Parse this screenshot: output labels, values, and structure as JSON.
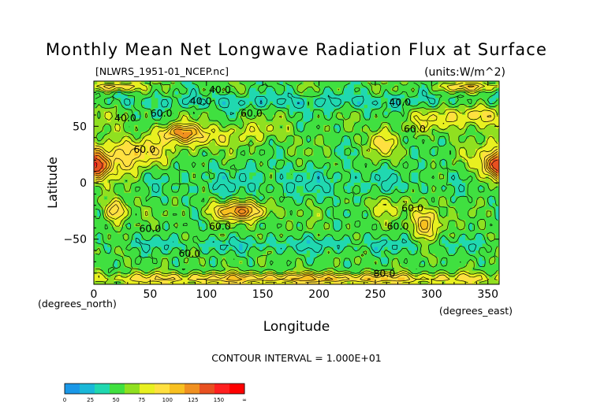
{
  "chart_data": {
    "type": "heatmap",
    "title": "Monthly Mean Net Longwave Radiation Flux at Surface",
    "subtitle_left": "[NLWRS_1951-01_NCEP.nc]",
    "units": "(units:W/m^2)",
    "xlabel": "Longitude",
    "ylabel": "Latitude",
    "x_axis_note": "(degrees_north)",
    "x_unit_note": "(degrees_east)",
    "xlim": [
      0,
      360
    ],
    "ylim": [
      -90,
      90
    ],
    "x_ticks": [
      0,
      50,
      100,
      150,
      200,
      250,
      300,
      350
    ],
    "x_tick_labels": [
      "0",
      "50",
      "100",
      "150",
      "200",
      "250",
      "300",
      "350"
    ],
    "y_ticks": [
      50,
      0,
      -50
    ],
    "y_tick_labels": [
      "50",
      "0",
      "−50"
    ],
    "contour_interval": "CONTOUR INTERVAL = 1.000E+01",
    "contour_labels": [
      {
        "text": "40.0",
        "lon": 112,
        "lat": 83
      },
      {
        "text": "40.0",
        "lon": 95,
        "lat": 73
      },
      {
        "text": "40.0",
        "lon": 28,
        "lat": 58
      },
      {
        "text": "40.0",
        "lon": 272,
        "lat": 72
      },
      {
        "text": "60.0",
        "lon": 60,
        "lat": 62
      },
      {
        "text": "60.0",
        "lon": 140,
        "lat": 62
      },
      {
        "text": "60.0",
        "lon": 285,
        "lat": 48
      },
      {
        "text": "60.0",
        "lon": 45,
        "lat": 30
      },
      {
        "text": "60.0",
        "lon": 50,
        "lat": -40
      },
      {
        "text": "60.0",
        "lon": 112,
        "lat": -38
      },
      {
        "text": "60.0",
        "lon": 270,
        "lat": -38
      },
      {
        "text": "60.0",
        "lon": 283,
        "lat": -22
      },
      {
        "text": "60.0",
        "lon": 85,
        "lat": -62
      },
      {
        "text": "80.0",
        "lon": 258,
        "lat": -80
      }
    ],
    "color_levels": {
      "bounds": [
        0,
        25,
        50,
        75,
        100,
        125,
        150
      ],
      "colors": [
        "#1a98e8",
        "#1ab8d8",
        "#20d8b0",
        "#40e040",
        "#90e020",
        "#e8f020",
        "#ffe040",
        "#f8c020",
        "#f09020",
        "#e85020",
        "#ff2020",
        "#ff0000"
      ],
      "bin_values": [
        5,
        15,
        30,
        45,
        55,
        65,
        80,
        95,
        110,
        125,
        140,
        160
      ]
    },
    "colorbar_tick_labels": [
      "0",
      "25",
      "50",
      "75",
      "100",
      "125",
      "150",
      "∞"
    ]
  }
}
